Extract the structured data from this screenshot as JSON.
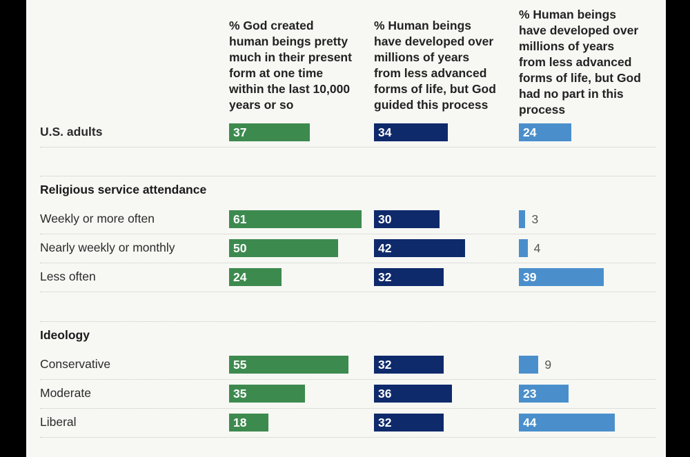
{
  "chart_data": {
    "type": "bar",
    "orientation": "horizontal",
    "series": [
      {
        "name": "% God created human beings pretty much in their present form at one time within the last 10,000 years or so",
        "color": "#3d8a4f"
      },
      {
        "name": "% Human beings have developed over millions of years from less advanced forms of life, but God guided this process",
        "color": "#0f2a6b"
      },
      {
        "name": "% Human beings have developed over millions of years from less advanced forms of life, but God had no part in this process",
        "color": "#4a8fcb"
      }
    ],
    "groups": [
      {
        "title": "",
        "rows": [
          {
            "label": "U.S. adults",
            "values": [
              37,
              34,
              24
            ]
          }
        ]
      },
      {
        "title": "Religious service attendance",
        "rows": [
          {
            "label": "Weekly or more often",
            "values": [
              61,
              30,
              3
            ]
          },
          {
            "label": "Nearly weekly or monthly",
            "values": [
              50,
              42,
              4
            ]
          },
          {
            "label": "Less often",
            "values": [
              24,
              32,
              39
            ]
          }
        ]
      },
      {
        "title": "Ideology",
        "rows": [
          {
            "label": "Conservative",
            "values": [
              55,
              32,
              9
            ]
          },
          {
            "label": "Moderate",
            "values": [
              35,
              36,
              23
            ]
          },
          {
            "label": "Liberal",
            "values": [
              18,
              32,
              44
            ]
          }
        ]
      }
    ]
  },
  "headers": [
    "% God created\nhuman beings pretty\nmuch in their present\nform at one time\nwithin the last 10,000\nyears or so",
    "% Human beings\nhave developed over\nmillions of years\nfrom less advanced\nforms of life, but God\nguided this process",
    "% Human beings\nhave developed over\nmillions of years\nfrom less advanced\nforms of life, but God\nhad no part in this\nprocess"
  ]
}
